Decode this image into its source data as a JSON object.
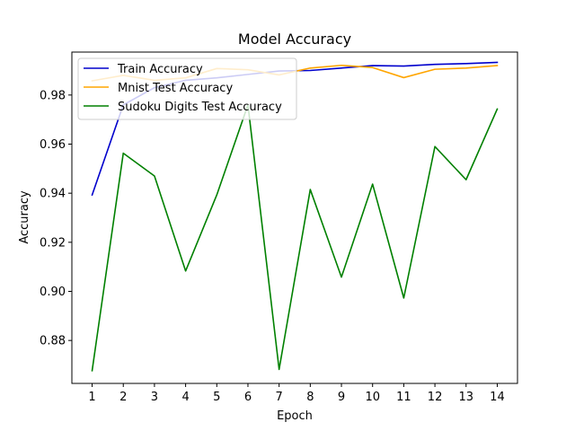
{
  "chart_data": {
    "type": "line",
    "title": "Model Accuracy",
    "xlabel": "Epoch",
    "ylabel": "Accuracy",
    "x": [
      1,
      2,
      3,
      4,
      5,
      6,
      7,
      8,
      9,
      10,
      11,
      12,
      13,
      14
    ],
    "xticks": [
      "1",
      "2",
      "3",
      "4",
      "5",
      "6",
      "7",
      "8",
      "9",
      "10",
      "11",
      "12",
      "13",
      "14"
    ],
    "yticks": [
      "0.88",
      "0.90",
      "0.92",
      "0.94",
      "0.96",
      "0.98"
    ],
    "ytick_values": [
      0.88,
      0.9,
      0.92,
      0.94,
      0.96,
      0.98
    ],
    "xlim": [
      0.35,
      14.65
    ],
    "ylim": [
      0.8625,
      0.9975
    ],
    "grid": false,
    "legend_position": "top-left",
    "series": [
      {
        "name": "Train Accuracy",
        "color": "#0000cc",
        "values": [
          0.9393,
          0.976,
          0.983,
          0.986,
          0.987,
          0.9884,
          0.9898,
          0.99,
          0.991,
          0.992,
          0.9918,
          0.9925,
          0.9928,
          0.9933
        ]
      },
      {
        "name": "Mnist Test Accuracy",
        "color": "#ffa500",
        "values": [
          0.9858,
          0.988,
          0.986,
          0.987,
          0.9908,
          0.9903,
          0.9882,
          0.991,
          0.9921,
          0.9912,
          0.9871,
          0.9905,
          0.991,
          0.992
        ]
      },
      {
        "name": "Sudoku Digits Test Accuracy",
        "color": "#008000",
        "values": [
          0.8677,
          0.9563,
          0.947,
          0.9083,
          0.9393,
          0.976,
          0.8682,
          0.9415,
          0.9058,
          0.9437,
          0.8973,
          0.959,
          0.9455,
          0.9743
        ]
      }
    ]
  }
}
